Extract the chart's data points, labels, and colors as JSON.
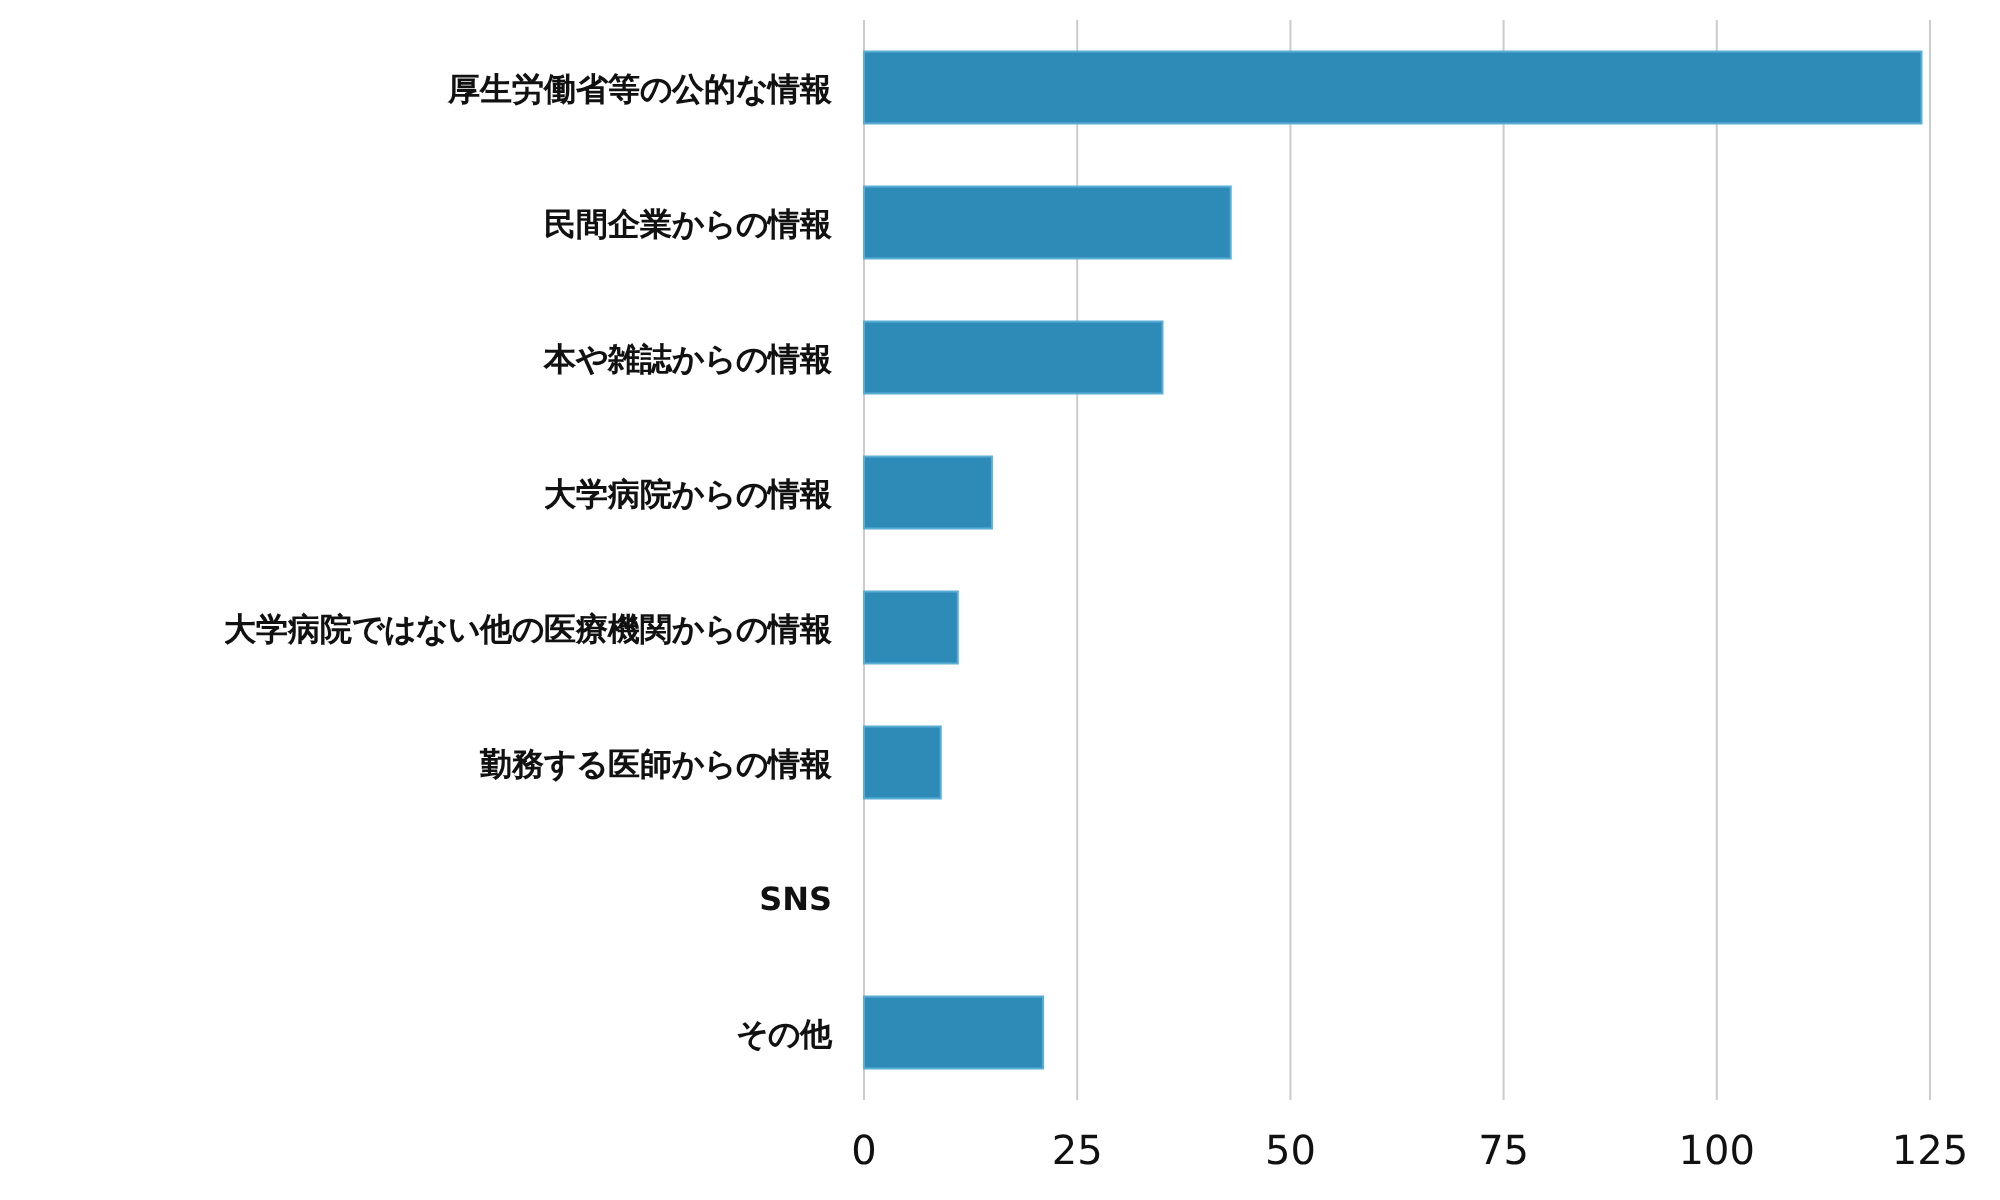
{
  "chart_data": {
    "type": "bar",
    "orientation": "horizontal",
    "categories": [
      "厚生労働省等の公的な情報",
      "民間企業からの情報",
      "本や雑誌からの情報",
      "大学病院からの情報",
      "大学病院ではない他の医療機関からの情報",
      "勤務する医師からの情報",
      "SNS",
      "その他"
    ],
    "values": [
      124,
      43,
      35,
      15,
      11,
      9,
      0,
      21
    ],
    "color": "#2e8bb8",
    "xlim": [
      0,
      125
    ],
    "xticks": [
      0,
      25,
      50,
      75,
      100,
      125
    ],
    "grid": "x"
  }
}
